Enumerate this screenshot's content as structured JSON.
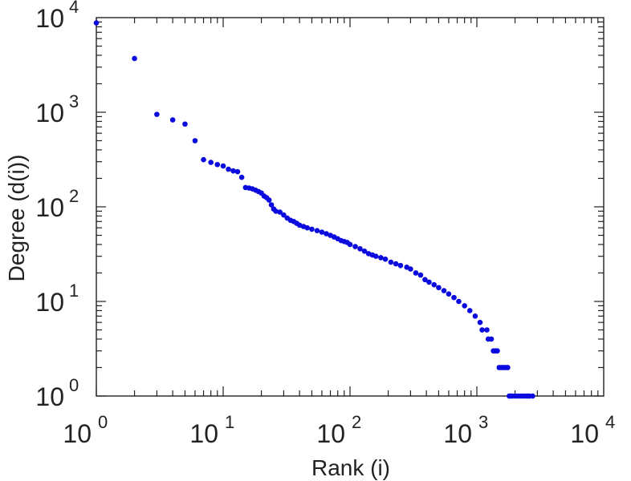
{
  "chart_data": {
    "type": "scatter",
    "title": "",
    "xlabel": "Rank (i)",
    "ylabel": "Degree (d(i))",
    "xscale": "log",
    "yscale": "log",
    "xlim": [
      1,
      10000
    ],
    "ylim": [
      1,
      10000
    ],
    "grid": false,
    "marker_color": "#0a0adf",
    "x_ticks": [
      {
        "base": "10",
        "exp": "0",
        "value": 1
      },
      {
        "base": "10",
        "exp": "1",
        "value": 10
      },
      {
        "base": "10",
        "exp": "2",
        "value": 100
      },
      {
        "base": "10",
        "exp": "3",
        "value": 1000
      },
      {
        "base": "10",
        "exp": "4",
        "value": 10000
      }
    ],
    "y_ticks": [
      {
        "base": "10",
        "exp": "0",
        "value": 1
      },
      {
        "base": "10",
        "exp": "1",
        "value": 10
      },
      {
        "base": "10",
        "exp": "2",
        "value": 100
      },
      {
        "base": "10",
        "exp": "3",
        "value": 1000
      },
      {
        "base": "10",
        "exp": "4",
        "value": 10000
      }
    ],
    "points": [
      [
        1,
        8800
      ],
      [
        2,
        3700
      ],
      [
        3,
        950
      ],
      [
        4,
        830
      ],
      [
        5,
        750
      ],
      [
        6,
        500
      ],
      [
        7,
        315
      ],
      [
        8,
        295
      ],
      [
        9,
        280
      ],
      [
        10,
        270
      ],
      [
        11,
        250
      ],
      [
        12,
        240
      ],
      [
        13,
        235
      ],
      [
        14,
        205
      ],
      [
        15,
        160
      ],
      [
        16,
        158
      ],
      [
        17,
        155
      ],
      [
        18,
        150
      ],
      [
        19,
        145
      ],
      [
        20,
        140
      ],
      [
        21,
        130
      ],
      [
        22,
        125
      ],
      [
        23,
        118
      ],
      [
        24,
        105
      ],
      [
        25,
        95
      ],
      [
        26,
        90
      ],
      [
        28,
        88
      ],
      [
        30,
        82
      ],
      [
        32,
        76
      ],
      [
        34,
        72
      ],
      [
        36,
        70
      ],
      [
        38,
        67
      ],
      [
        40,
        64
      ],
      [
        43,
        62
      ],
      [
        46,
        60
      ],
      [
        50,
        58
      ],
      [
        55,
        56
      ],
      [
        60,
        54
      ],
      [
        65,
        52
      ],
      [
        70,
        50
      ],
      [
        75,
        48
      ],
      [
        80,
        46
      ],
      [
        85,
        44
      ],
      [
        90,
        43
      ],
      [
        95,
        42
      ],
      [
        100,
        40
      ],
      [
        110,
        38
      ],
      [
        120,
        36
      ],
      [
        130,
        34
      ],
      [
        140,
        32
      ],
      [
        150,
        31
      ],
      [
        160,
        30
      ],
      [
        175,
        29
      ],
      [
        190,
        28
      ],
      [
        210,
        26
      ],
      [
        230,
        25
      ],
      [
        250,
        24
      ],
      [
        280,
        23
      ],
      [
        300,
        22
      ],
      [
        330,
        20
      ],
      [
        360,
        19
      ],
      [
        390,
        17
      ],
      [
        420,
        16
      ],
      [
        460,
        15
      ],
      [
        500,
        14
      ],
      [
        550,
        13
      ],
      [
        600,
        12
      ],
      [
        660,
        11
      ],
      [
        720,
        10
      ],
      [
        800,
        9
      ],
      [
        880,
        8
      ],
      [
        970,
        7
      ],
      [
        1060,
        6
      ],
      [
        1100,
        5
      ],
      [
        1200,
        5
      ],
      [
        1230,
        4
      ],
      [
        1300,
        4
      ],
      [
        1350,
        3
      ],
      [
        1400,
        3
      ],
      [
        1450,
        3
      ],
      [
        1500,
        2
      ],
      [
        1560,
        2
      ],
      [
        1620,
        2
      ],
      [
        1680,
        2
      ],
      [
        1750,
        2
      ],
      [
        1800,
        1
      ],
      [
        1850,
        1
      ],
      [
        1900,
        1
      ],
      [
        2000,
        1
      ],
      [
        2100,
        1
      ],
      [
        2200,
        1
      ],
      [
        2300,
        1
      ],
      [
        2400,
        1
      ],
      [
        2500,
        1
      ],
      [
        2600,
        1
      ],
      [
        2750,
        1
      ]
    ]
  }
}
